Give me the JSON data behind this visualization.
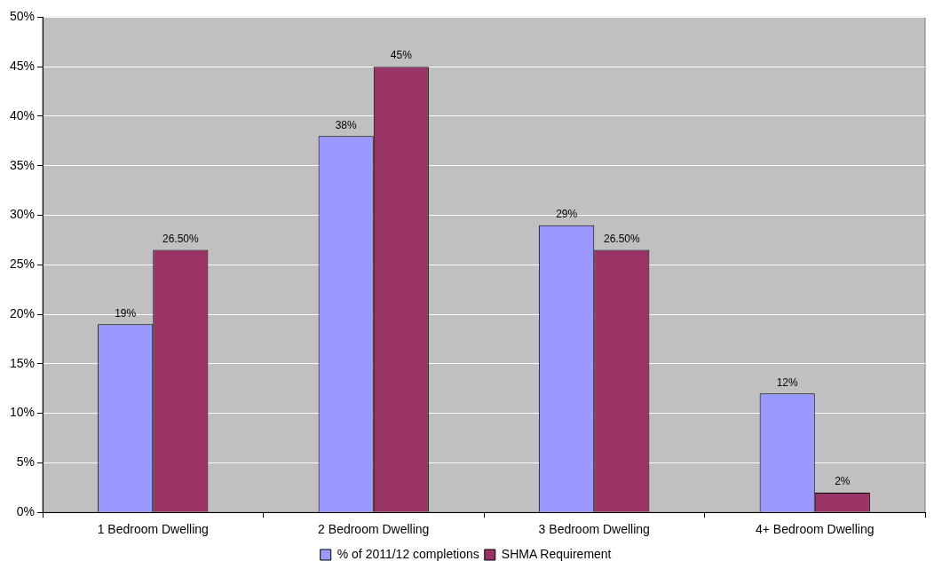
{
  "chart_data": {
    "type": "bar",
    "categories": [
      "1 Bedroom Dwelling",
      "2 Bedroom Dwelling",
      "3 Bedroom Dwelling",
      "4+ Bedroom Dwelling"
    ],
    "series": [
      {
        "name": "% of 2011/12 completions",
        "color": "#9999ff",
        "values": [
          19,
          38,
          29,
          12
        ],
        "value_labels": [
          "19%",
          "38%",
          "29%",
          "12%"
        ]
      },
      {
        "name": "SHMA Requirement",
        "color": "#993366",
        "values": [
          26.5,
          45,
          26.5,
          2
        ],
        "value_labels": [
          "26.50%",
          "45%",
          "26.50%",
          "2%"
        ]
      }
    ],
    "ylim": [
      0,
      50
    ],
    "yticks": [
      {
        "value": 0,
        "label": "0%"
      },
      {
        "value": 5,
        "label": "5%"
      },
      {
        "value": 10,
        "label": "10%"
      },
      {
        "value": 15,
        "label": "15%"
      },
      {
        "value": 20,
        "label": "20%"
      },
      {
        "value": 25,
        "label": "25%"
      },
      {
        "value": 30,
        "label": "30%"
      },
      {
        "value": 35,
        "label": "35%"
      },
      {
        "value": 40,
        "label": "40%"
      },
      {
        "value": 45,
        "label": "45%"
      },
      {
        "value": 50,
        "label": "50%"
      }
    ],
    "grid": "y",
    "legend": "bottom"
  }
}
